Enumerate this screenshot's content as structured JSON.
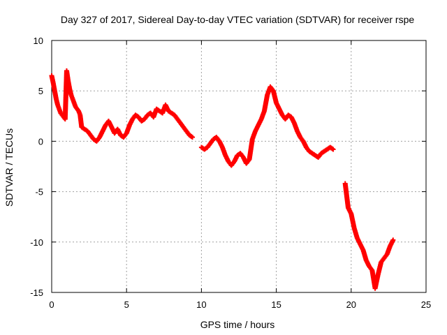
{
  "chart_data": {
    "type": "scatter",
    "title": "Day 327 of 2017, Sidereal Day-to-day VTEC variation (SDTVAR) for receiver rspe",
    "xlabel": "GPS time / hours",
    "ylabel": "SDTVAR / TECUs",
    "xlim": [
      0,
      25
    ],
    "ylim": [
      -15,
      10
    ],
    "xticks": [
      "0",
      "5",
      "10",
      "15",
      "20",
      "25"
    ],
    "yticks": [
      "-15",
      "-10",
      "-5",
      "0",
      "5",
      "10"
    ],
    "grid": true,
    "marker": "plus",
    "color": "#ff0000",
    "series": [
      {
        "name": "SDTVAR",
        "x": [
          0.0,
          0.1,
          0.2,
          0.3,
          0.4,
          0.5,
          0.6,
          0.7,
          0.8,
          0.9,
          1.0,
          1.1,
          1.2,
          1.3,
          1.4,
          1.5,
          1.6,
          1.7,
          1.8,
          1.9,
          2.0,
          2.2,
          2.4,
          2.6,
          2.8,
          3.0,
          3.2,
          3.4,
          3.6,
          3.8,
          4.0,
          4.2,
          4.4,
          4.6,
          4.8,
          5.0,
          5.2,
          5.4,
          5.6,
          5.8,
          6.0,
          6.2,
          6.4,
          6.6,
          6.8,
          7.0,
          7.2,
          7.4,
          7.6,
          7.8,
          8.0,
          8.2,
          8.4,
          8.6,
          8.8,
          9.0,
          9.2,
          9.4,
          10.0,
          10.2,
          10.4,
          10.6,
          10.8,
          11.0,
          11.2,
          11.4,
          11.6,
          11.8,
          12.0,
          12.2,
          12.4,
          12.6,
          12.8,
          13.0,
          13.2,
          13.4,
          13.6,
          13.8,
          14.0,
          14.2,
          14.4,
          14.6,
          14.8,
          15.0,
          15.2,
          15.4,
          15.6,
          15.8,
          16.0,
          16.2,
          16.4,
          16.6,
          16.8,
          17.0,
          17.2,
          17.4,
          17.6,
          17.8,
          18.0,
          18.2,
          18.4,
          18.6,
          18.8,
          19.6,
          19.8,
          20.0,
          20.2,
          20.4,
          20.6,
          20.8,
          21.0,
          21.2,
          21.4,
          21.6,
          21.8,
          22.0,
          22.2,
          22.4,
          22.6,
          22.8
        ],
        "y": [
          6.5,
          5.8,
          5.0,
          4.2,
          3.6,
          3.2,
          2.8,
          2.6,
          2.4,
          2.2,
          7.0,
          6.0,
          5.2,
          4.6,
          4.2,
          3.8,
          3.4,
          3.2,
          3.0,
          2.6,
          1.4,
          1.2,
          1.0,
          0.6,
          0.2,
          0.0,
          0.4,
          1.0,
          1.6,
          2.0,
          1.4,
          0.8,
          1.2,
          0.6,
          0.4,
          0.8,
          1.6,
          2.2,
          2.6,
          2.4,
          2.0,
          2.2,
          2.6,
          2.8,
          2.4,
          3.2,
          3.0,
          2.8,
          3.6,
          3.0,
          2.8,
          2.6,
          2.2,
          1.8,
          1.4,
          1.0,
          0.6,
          0.4,
          -0.6,
          -0.8,
          -0.6,
          -0.2,
          0.2,
          0.4,
          0.0,
          -0.6,
          -1.4,
          -2.0,
          -2.4,
          -2.0,
          -1.4,
          -1.2,
          -1.6,
          -2.2,
          -1.8,
          0.2,
          1.0,
          1.6,
          2.2,
          3.0,
          4.6,
          5.4,
          5.0,
          3.8,
          3.2,
          2.6,
          2.2,
          2.6,
          2.4,
          1.8,
          1.0,
          0.4,
          0.0,
          -0.6,
          -1.0,
          -1.2,
          -1.4,
          -1.6,
          -1.2,
          -1.0,
          -0.8,
          -0.6,
          -0.8,
          -4.2,
          -6.6,
          -7.2,
          -8.6,
          -9.6,
          -10.2,
          -10.8,
          -11.8,
          -12.4,
          -12.8,
          -14.6,
          -13.2,
          -12.0,
          -11.6,
          -11.2,
          -10.4,
          -9.8
        ]
      }
    ]
  }
}
